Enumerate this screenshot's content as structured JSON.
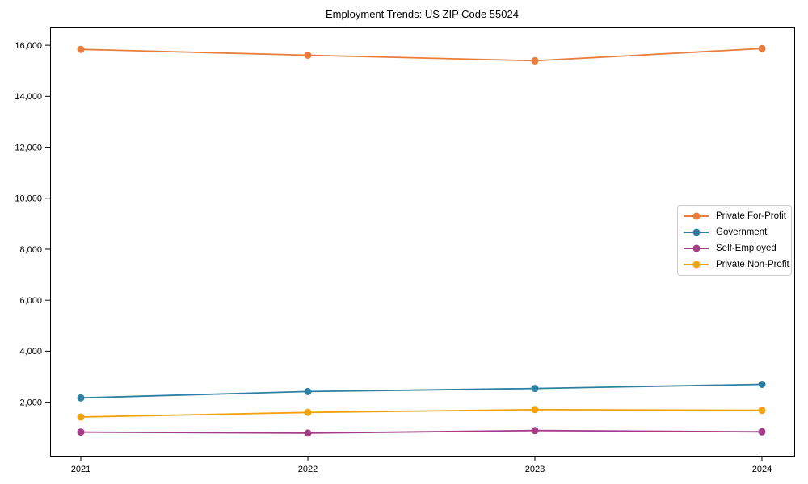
{
  "title": "Employment Trends: US ZIP Code 55024",
  "chart_data": {
    "type": "line",
    "title": "Employment Trends: US ZIP Code 55024",
    "xlabel": "",
    "ylabel": "",
    "categories": [
      "2021",
      "2022",
      "2023",
      "2024"
    ],
    "series": [
      {
        "name": "Private For-Profit",
        "color": "#E87D3D",
        "values": [
          15840,
          15610,
          15390,
          15870
        ]
      },
      {
        "name": "Government",
        "color": "#2E80A0",
        "values": [
          2170,
          2420,
          2540,
          2700
        ]
      },
      {
        "name": "Self-Employed",
        "color": "#A43C86",
        "values": [
          830,
          790,
          890,
          840
        ]
      },
      {
        "name": "Private Non-Profit",
        "color": "#F2A20D",
        "values": [
          1420,
          1600,
          1710,
          1680
        ]
      }
    ],
    "y_ticks": {
      "values": [
        2000,
        4000,
        6000,
        8000,
        10000,
        12000,
        14000,
        16000
      ],
      "labels": [
        "2,000",
        "4,000",
        "6,000",
        "8,000",
        "10,000",
        "12,000",
        "14,000",
        "16,000"
      ]
    },
    "ylim": [
      -100,
      16700
    ],
    "grid": false,
    "legend_position": "right",
    "marker": "circle",
    "frame_color": "#000000",
    "background_color": "#ffffff"
  }
}
